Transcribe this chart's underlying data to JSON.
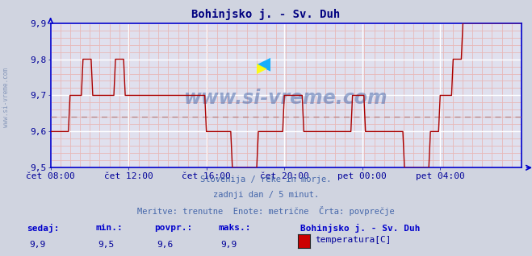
{
  "title": "Bohinjsko j. - Sv. Duh",
  "title_color": "#000080",
  "background_color": "#d0d4e0",
  "plot_bg_color": "#e0e0ee",
  "grid_color_major": "#ffffff",
  "grid_color_minor": "#e8b8b8",
  "line_color": "#aa0000",
  "avg_line_color": "#bb8888",
  "tick_color": "#000099",
  "ylim": [
    9.5,
    9.9
  ],
  "yticks": [
    9.5,
    9.6,
    9.7,
    9.8,
    9.9
  ],
  "avg_value": 9.64,
  "footer_line1": "Slovenija / reke in morje.",
  "footer_line2": "zadnji dan / 5 minut.",
  "footer_line3": "Meritve: trenutne  Enote: metrične  Črta: povprečje",
  "footer_color": "#4466aa",
  "stat_labels": [
    "sedaj:",
    "min.:",
    "povpr.:",
    "maks.:"
  ],
  "stat_values": [
    "9,9",
    "9,5",
    "9,6",
    "9,9"
  ],
  "stat_label_color": "#0000cc",
  "stat_value_color": "#000099",
  "legend_title": "Bohinjsko j. - Sv. Duh",
  "legend_label": "temperatura[C]",
  "legend_color": "#cc0000",
  "watermark": "www.si-vreme.com",
  "watermark_color": "#4466aa",
  "sidebar_text": "www.si-vreme.com",
  "sidebar_color": "#8899bb",
  "xtick_labels": [
    "čet 08:00",
    "čet 12:00",
    "čet 16:00",
    "čet 20:00",
    "pet 00:00",
    "pet 04:00"
  ],
  "xtick_positions": [
    0,
    48,
    96,
    144,
    192,
    240
  ],
  "x_arrow_color": "#0000cc",
  "y_values": [
    9.6,
    9.6,
    9.6,
    9.6,
    9.6,
    9.6,
    9.6,
    9.6,
    9.6,
    9.6,
    9.6,
    9.6,
    9.7,
    9.7,
    9.7,
    9.7,
    9.7,
    9.7,
    9.7,
    9.7,
    9.8,
    9.8,
    9.8,
    9.8,
    9.8,
    9.8,
    9.7,
    9.7,
    9.7,
    9.7,
    9.7,
    9.7,
    9.7,
    9.7,
    9.7,
    9.7,
    9.7,
    9.7,
    9.7,
    9.7,
    9.8,
    9.8,
    9.8,
    9.8,
    9.8,
    9.8,
    9.7,
    9.7,
    9.7,
    9.7,
    9.7,
    9.7,
    9.7,
    9.7,
    9.7,
    9.7,
    9.7,
    9.7,
    9.7,
    9.7,
    9.7,
    9.7,
    9.7,
    9.7,
    9.7,
    9.7,
    9.7,
    9.7,
    9.7,
    9.7,
    9.7,
    9.7,
    9.7,
    9.7,
    9.7,
    9.7,
    9.7,
    9.7,
    9.7,
    9.7,
    9.7,
    9.7,
    9.7,
    9.7,
    9.7,
    9.7,
    9.7,
    9.7,
    9.7,
    9.7,
    9.7,
    9.7,
    9.7,
    9.7,
    9.7,
    9.7,
    9.6,
    9.6,
    9.6,
    9.6,
    9.6,
    9.6,
    9.6,
    9.6,
    9.6,
    9.6,
    9.6,
    9.6,
    9.6,
    9.6,
    9.6,
    9.6,
    9.5,
    9.5,
    9.5,
    9.5,
    9.5,
    9.5,
    9.5,
    9.5,
    9.5,
    9.5,
    9.5,
    9.5,
    9.5,
    9.5,
    9.5,
    9.5,
    9.6,
    9.6,
    9.6,
    9.6,
    9.6,
    9.6,
    9.6,
    9.6,
    9.6,
    9.6,
    9.6,
    9.6,
    9.6,
    9.6,
    9.6,
    9.6,
    9.7,
    9.7,
    9.7,
    9.7,
    9.7,
    9.7,
    9.7,
    9.7,
    9.7,
    9.7,
    9.7,
    9.7,
    9.6,
    9.6,
    9.6,
    9.6,
    9.6,
    9.6,
    9.6,
    9.6,
    9.6,
    9.6,
    9.6,
    9.6,
    9.6,
    9.6,
    9.6,
    9.6,
    9.6,
    9.6,
    9.6,
    9.6,
    9.6,
    9.6,
    9.6,
    9.6,
    9.6,
    9.6,
    9.6,
    9.6,
    9.6,
    9.6,
    9.7,
    9.7,
    9.7,
    9.7,
    9.7,
    9.7,
    9.7,
    9.7,
    9.6,
    9.6,
    9.6,
    9.6,
    9.6,
    9.6,
    9.6,
    9.6,
    9.6,
    9.6,
    9.6,
    9.6,
    9.6,
    9.6,
    9.6,
    9.6,
    9.6,
    9.6,
    9.6,
    9.6,
    9.6,
    9.6,
    9.6,
    9.6,
    9.5,
    9.5,
    9.5,
    9.5,
    9.5,
    9.5,
    9.5,
    9.5,
    9.5,
    9.5,
    9.5,
    9.5,
    9.5,
    9.5,
    9.5,
    9.5,
    9.6,
    9.6,
    9.6,
    9.6,
    9.6,
    9.6,
    9.7,
    9.7,
    9.7,
    9.7,
    9.7,
    9.7,
    9.7,
    9.7,
    9.8,
    9.8,
    9.8,
    9.8,
    9.8,
    9.8,
    9.9,
    9.9,
    9.9,
    9.9,
    9.9,
    9.9,
    9.9,
    9.9,
    9.9,
    9.9,
    9.9,
    9.9,
    9.9,
    9.9,
    9.9,
    9.9,
    9.9,
    9.9,
    9.9,
    9.9,
    9.9,
    9.9,
    9.9,
    9.9,
    9.9,
    9.9,
    9.9,
    9.9,
    9.9,
    9.9,
    9.9,
    9.9,
    9.9,
    9.9,
    9.9,
    9.9,
    9.9
  ]
}
